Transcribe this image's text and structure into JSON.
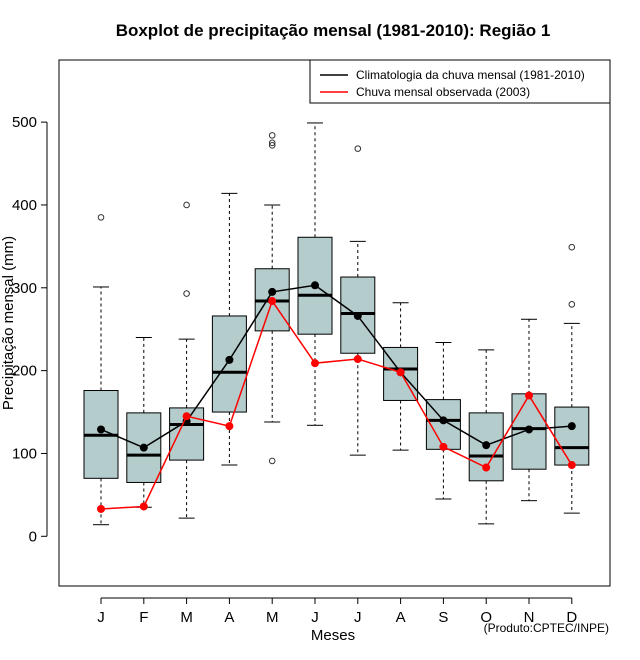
{
  "colors": {
    "box_fill": "#b4cccc",
    "climatology": "#000000",
    "observed": "#ff0000",
    "outlier": "#333333"
  },
  "chart_data": {
    "type": "boxplot",
    "title": "Boxplot de precipitação mensal (1981-2010): Região 1",
    "xlabel": "Meses",
    "ylabel": "Precipitação mensal (mm)",
    "ylim": [
      -60,
      575
    ],
    "y_ticks": [
      0,
      100,
      200,
      300,
      400,
      500
    ],
    "categories": [
      "J",
      "F",
      "M",
      "A",
      "M",
      "J",
      "J",
      "A",
      "S",
      "O",
      "N",
      "D"
    ],
    "boxes": [
      {
        "min": 14,
        "q1": 70,
        "median": 122,
        "q3": 176,
        "max": 301,
        "outliers": [
          385
        ]
      },
      {
        "min": 35,
        "q1": 65,
        "median": 98,
        "q3": 149,
        "max": 240,
        "outliers": []
      },
      {
        "min": 22,
        "q1": 92,
        "median": 135,
        "q3": 155,
        "max": 238,
        "outliers": [
          293,
          400
        ]
      },
      {
        "min": 86,
        "q1": 150,
        "median": 198,
        "q3": 266,
        "max": 414,
        "outliers": []
      },
      {
        "min": 138,
        "q1": 248,
        "median": 284,
        "q3": 323,
        "max": 400,
        "outliers": [
          91,
          472,
          475,
          484
        ]
      },
      {
        "min": 134,
        "q1": 244,
        "median": 291,
        "q3": 361,
        "max": 499,
        "outliers": []
      },
      {
        "min": 98,
        "q1": 221,
        "median": 269,
        "q3": 313,
        "max": 356,
        "outliers": [
          468
        ]
      },
      {
        "min": 104,
        "q1": 164,
        "median": 202,
        "q3": 228,
        "max": 282,
        "outliers": []
      },
      {
        "min": 45,
        "q1": 105,
        "median": 140,
        "q3": 165,
        "max": 234,
        "outliers": []
      },
      {
        "min": 15,
        "q1": 67,
        "median": 97,
        "q3": 149,
        "max": 225,
        "outliers": []
      },
      {
        "min": 43,
        "q1": 81,
        "median": 130,
        "q3": 172,
        "max": 262,
        "outliers": []
      },
      {
        "min": 28,
        "q1": 86,
        "median": 107,
        "q3": 156,
        "max": 257,
        "outliers": [
          280,
          349
        ]
      }
    ],
    "series": [
      {
        "name": "Climatologia da chuva mensal (1981-2010)",
        "color": "#000000",
        "values": [
          129,
          107,
          139,
          213,
          295,
          303,
          266,
          198,
          140,
          110,
          129,
          133
        ]
      },
      {
        "name": "Chuva mensal observada (2003)",
        "color": "#ff0000",
        "values": [
          33,
          36,
          145,
          133,
          284,
          209,
          214,
          198,
          108,
          83,
          170,
          86
        ]
      }
    ],
    "legend_position": "top-right",
    "credit": "(Produto:CPTEC/INPE)"
  }
}
